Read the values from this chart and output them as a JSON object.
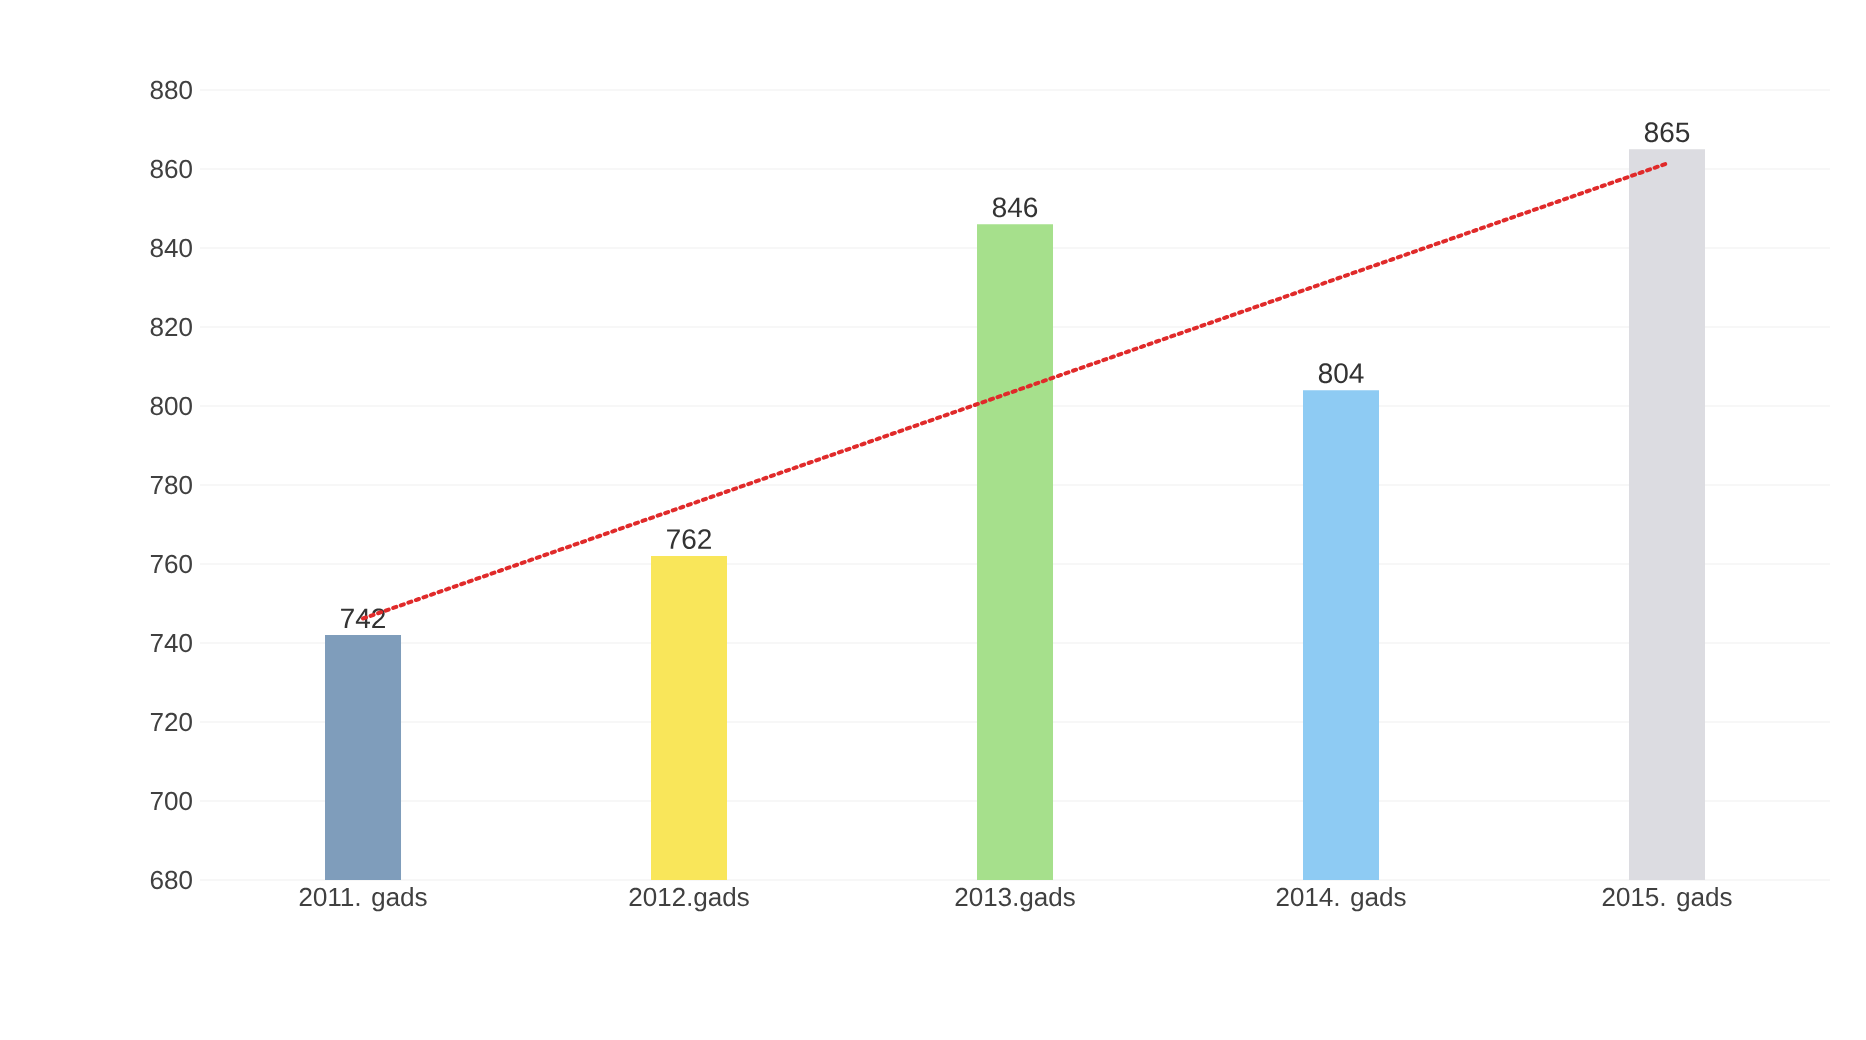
{
  "chart_data": {
    "type": "bar",
    "categories": [
      "2011. gads",
      "2012.gads",
      "2013.gads",
      "2014. gads",
      "2015. gads"
    ],
    "series": [
      {
        "colors": [
          "#7f9dbb",
          "#f9e65a",
          "#a6e08c",
          "#8ecbf3",
          "#dcdce1"
        ],
        "values": [
          742,
          762,
          846,
          804,
          865
        ],
        "value_labels": [
          "742",
          "762",
          "846",
          "804",
          "865"
        ]
      },
      {
        "type": "line",
        "color": "#e02a2a",
        "line_style": "dotted",
        "marker": "none",
        "values": [
          746.2,
          775,
          803.8,
          832.6,
          861.4
        ]
      }
    ],
    "ylim": [
      680,
      880
    ],
    "yticks": [
      680,
      700,
      720,
      740,
      760,
      780,
      800,
      820,
      840,
      860,
      880
    ],
    "grid": "y"
  }
}
